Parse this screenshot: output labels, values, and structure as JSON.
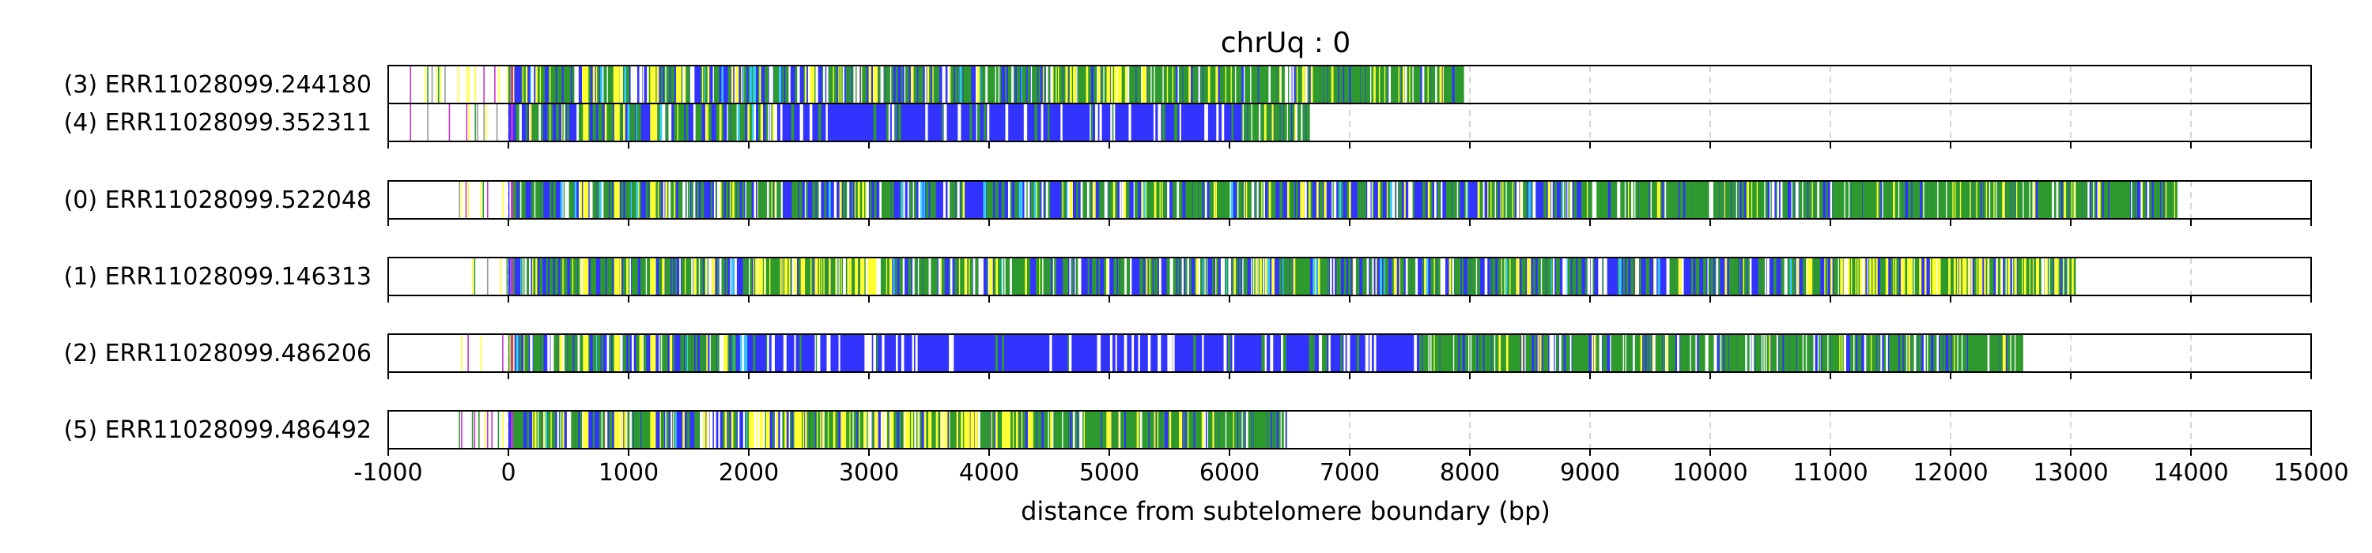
{
  "chart_data": {
    "type": "bar",
    "title": "chrUq : 0",
    "xlabel": "distance from subtelomere boundary (bp)",
    "xlim": [
      -1000,
      15000
    ],
    "x_ticks": [
      -1000,
      0,
      1000,
      2000,
      3000,
      4000,
      5000,
      6000,
      7000,
      8000,
      9000,
      10000,
      11000,
      12000,
      13000,
      14000,
      15000
    ],
    "x_tick_labels": [
      "-1000",
      "0",
      "1000",
      "2000",
      "3000",
      "4000",
      "5000",
      "6000",
      "7000",
      "8000",
      "9000",
      "10000",
      "11000",
      "12000",
      "13000",
      "14000",
      "15000"
    ],
    "grid": "vertical dashed lines at each x tick",
    "colors": {
      "repeat": "#3333ff",
      "variant_green": "#2e9a2e",
      "variant_yellow": "#ffff33",
      "variant_magenta": "#cc33cc",
      "variant_cyan": "#33ccff",
      "gap": "#ffffff",
      "frame": "#000000",
      "grid": "#c8c8c8"
    },
    "groups": [
      {
        "reads": [
          {
            "label": "(3) ERR11028099.244180",
            "start": -820,
            "end": 7930,
            "segments": [
              {
                "from": 0,
                "to": 4500,
                "density": "mixed"
              },
              {
                "from": 4500,
                "to": 5200,
                "density": "yellow-rich"
              },
              {
                "from": 5200,
                "to": 7930,
                "density": "green-rich"
              }
            ]
          },
          {
            "label": "(4) ERR11028099.352311",
            "start": -820,
            "end": 6650,
            "segments": [
              {
                "from": 0,
                "to": 2200,
                "density": "mixed"
              },
              {
                "from": 2200,
                "to": 6100,
                "density": "blue"
              },
              {
                "from": 6100,
                "to": 6650,
                "density": "green-rich"
              }
            ]
          }
        ]
      },
      {
        "reads": [
          {
            "label": "(0) ERR11028099.522048",
            "start": -430,
            "end": 13870,
            "segments": [
              {
                "from": 0,
                "to": 9000,
                "density": "mixed"
              },
              {
                "from": 9000,
                "to": 13870,
                "density": "green-rich"
              }
            ]
          }
        ]
      },
      {
        "reads": [
          {
            "label": "(1) ERR11028099.146313",
            "start": -430,
            "end": 13030,
            "segments": [
              {
                "from": 0,
                "to": 2000,
                "density": "mixed"
              },
              {
                "from": 2000,
                "to": 3200,
                "density": "yellow-rich"
              },
              {
                "from": 3200,
                "to": 11000,
                "density": "mixed"
              },
              {
                "from": 11000,
                "to": 13030,
                "density": "yellow-rich"
              }
            ]
          }
        ]
      },
      {
        "reads": [
          {
            "label": "(2) ERR11028099.486206",
            "start": -430,
            "end": 12590,
            "segments": [
              {
                "from": 0,
                "to": 2000,
                "density": "mixed"
              },
              {
                "from": 2000,
                "to": 7600,
                "density": "blue"
              },
              {
                "from": 7600,
                "to": 12590,
                "density": "green-rich"
              }
            ]
          }
        ]
      },
      {
        "reads": [
          {
            "label": "(5) ERR11028099.486492",
            "start": -430,
            "end": 6480,
            "segments": [
              {
                "from": 0,
                "to": 2000,
                "density": "mixed"
              },
              {
                "from": 2000,
                "to": 4400,
                "density": "yellow-rich"
              },
              {
                "from": 4400,
                "to": 6480,
                "density": "green-rich"
              }
            ]
          }
        ]
      }
    ]
  }
}
